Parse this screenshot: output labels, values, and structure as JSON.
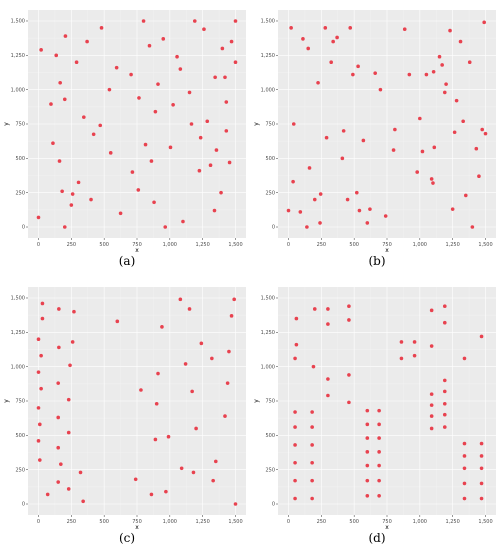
{
  "colors": {
    "point": "#e8424f",
    "panel": "#ebebeb",
    "grid": "#ffffff"
  },
  "chart_data": [
    {
      "type": "scatter",
      "caption": "(a)",
      "xlabel": "x",
      "ylabel": "y",
      "xlim": [
        -80,
        1580
      ],
      "ylim": [
        -80,
        1580
      ],
      "x_ticks": [
        0,
        250,
        500,
        750,
        1000,
        1250,
        1500
      ],
      "x_tick_labels": [
        "0",
        "250",
        "500",
        "750",
        "1,000",
        "1,250",
        "1,500"
      ],
      "y_ticks": [
        0,
        250,
        500,
        750,
        1000,
        1250,
        1500
      ],
      "y_tick_labels": [
        "0",
        "250",
        "500",
        "750",
        "1,000",
        "1,250",
        "1,500"
      ],
      "grid": true,
      "x": [
        0,
        20,
        95,
        110,
        135,
        160,
        165,
        180,
        200,
        200,
        205,
        250,
        260,
        290,
        305,
        345,
        370,
        400,
        420,
        470,
        480,
        540,
        550,
        595,
        625,
        705,
        715,
        760,
        765,
        800,
        815,
        845,
        860,
        880,
        890,
        910,
        950,
        965,
        1005,
        1025,
        1055,
        1080,
        1100,
        1150,
        1165,
        1190,
        1225,
        1235,
        1260,
        1285,
        1310,
        1340,
        1345,
        1355,
        1390,
        1400,
        1420,
        1430,
        1430,
        1455,
        1470,
        1500,
        1500
      ],
      "y": [
        70,
        1290,
        895,
        610,
        1250,
        480,
        1050,
        260,
        930,
        0,
        1390,
        160,
        240,
        1200,
        325,
        800,
        1350,
        200,
        675,
        740,
        1450,
        1000,
        540,
        1160,
        100,
        1110,
        400,
        270,
        940,
        1500,
        600,
        1320,
        480,
        180,
        840,
        1040,
        1370,
        0,
        580,
        890,
        1240,
        1150,
        40,
        980,
        750,
        1500,
        410,
        650,
        1440,
        770,
        450,
        120,
        1090,
        560,
        250,
        1300,
        1090,
        700,
        910,
        470,
        1350,
        1200,
        1500
      ]
    },
    {
      "type": "scatter",
      "caption": "(b)",
      "xlabel": "x",
      "ylabel": "y",
      "xlim": [
        -80,
        1580
      ],
      "ylim": [
        -80,
        1580
      ],
      "x_ticks": [
        0,
        250,
        500,
        750,
        1000,
        1250,
        1500
      ],
      "x_tick_labels": [
        "0",
        "250",
        "500",
        "750",
        "1,000",
        "1,250",
        "1,500"
      ],
      "y_ticks": [
        0,
        250,
        500,
        750,
        1000,
        1250,
        1500
      ],
      "y_tick_labels": [
        "0",
        "250",
        "500",
        "750",
        "1,000",
        "1,250",
        "1,500"
      ],
      "grid": true,
      "x": [
        0,
        20,
        35,
        40,
        90,
        110,
        140,
        150,
        160,
        200,
        225,
        240,
        245,
        280,
        290,
        325,
        340,
        370,
        410,
        420,
        450,
        470,
        490,
        520,
        530,
        540,
        570,
        600,
        620,
        660,
        700,
        740,
        800,
        810,
        885,
        920,
        980,
        1000,
        1020,
        1050,
        1090,
        1100,
        1105,
        1110,
        1150,
        1170,
        1190,
        1200,
        1230,
        1250,
        1265,
        1280,
        1310,
        1330,
        1350,
        1380,
        1400,
        1430,
        1450,
        1475,
        1490,
        1500
      ],
      "y": [
        120,
        1450,
        330,
        750,
        110,
        1370,
        0,
        1300,
        430,
        200,
        1050,
        30,
        240,
        1450,
        650,
        1200,
        1350,
        1380,
        500,
        700,
        200,
        1450,
        1110,
        250,
        1170,
        120,
        630,
        30,
        130,
        1120,
        1000,
        80,
        560,
        710,
        1440,
        1110,
        400,
        790,
        550,
        1110,
        350,
        320,
        1130,
        580,
        1240,
        1180,
        980,
        1040,
        1430,
        130,
        690,
        920,
        1350,
        770,
        230,
        1200,
        0,
        570,
        370,
        710,
        1490,
        680
      ]
    },
    {
      "type": "scatter",
      "caption": "(c)",
      "xlabel": "x",
      "ylabel": "y",
      "xlim": [
        -80,
        1580
      ],
      "ylim": [
        -80,
        1580
      ],
      "x_ticks": [
        0,
        250,
        500,
        750,
        1000,
        1250,
        1500
      ],
      "x_tick_labels": [
        "0",
        "250",
        "500",
        "750",
        "1,000",
        "1,250",
        "1,500"
      ],
      "y_ticks": [
        0,
        250,
        500,
        750,
        1000,
        1250,
        1500
      ],
      "y_tick_labels": [
        "0",
        "250",
        "500",
        "750",
        "1,000",
        "1,250",
        "1,500"
      ],
      "grid": true,
      "x": [
        0,
        0,
        0,
        0,
        10,
        10,
        20,
        20,
        30,
        30,
        70,
        150,
        150,
        150,
        150,
        155,
        155,
        170,
        230,
        230,
        230,
        240,
        260,
        270,
        320,
        340,
        600,
        740,
        780,
        860,
        890,
        900,
        910,
        940,
        970,
        990,
        1080,
        1090,
        1120,
        1150,
        1170,
        1180,
        1200,
        1240,
        1320,
        1330,
        1350,
        1420,
        1440,
        1450,
        1470,
        1490,
        1500
      ],
      "y": [
        460,
        700,
        960,
        1200,
        320,
        580,
        840,
        1080,
        1350,
        1460,
        70,
        160,
        410,
        630,
        880,
        1140,
        1420,
        290,
        110,
        520,
        760,
        1010,
        1180,
        1400,
        230,
        20,
        1330,
        180,
        830,
        70,
        470,
        730,
        950,
        1290,
        90,
        490,
        1490,
        260,
        1020,
        1420,
        820,
        230,
        550,
        1170,
        1060,
        170,
        310,
        640,
        880,
        1110,
        1370,
        1490,
        0
      ]
    },
    {
      "type": "scatter",
      "caption": "(d)",
      "xlabel": "x",
      "ylabel": "y",
      "xlim": [
        -80,
        1580
      ],
      "ylim": [
        -80,
        1580
      ],
      "x_ticks": [
        0,
        250,
        500,
        750,
        1000,
        1250,
        1500
      ],
      "x_tick_labels": [
        "0",
        "250",
        "500",
        "750",
        "1,000",
        "1,250",
        "1,500"
      ],
      "y_ticks": [
        0,
        250,
        500,
        750,
        1000,
        1250,
        1500
      ],
      "y_tick_labels": [
        "0",
        "250",
        "500",
        "750",
        "1,000",
        "1,250",
        "1,500"
      ],
      "grid": true,
      "x": [
        50,
        50,
        50,
        50,
        50,
        50,
        50,
        60,
        60,
        180,
        180,
        180,
        180,
        180,
        180,
        190,
        200,
        300,
        300,
        300,
        300,
        460,
        460,
        460,
        460,
        600,
        600,
        600,
        600,
        600,
        600,
        600,
        690,
        690,
        690,
        690,
        690,
        690,
        690,
        860,
        860,
        960,
        960,
        1090,
        1090,
        1090,
        1090,
        1090,
        1090,
        1190,
        1190,
        1190,
        1190,
        1190,
        1190,
        1190,
        1340,
        1340,
        1340,
        1340,
        1340,
        1340,
        1470,
        1470,
        1470,
        1470,
        1470,
        1470
      ],
      "y": [
        40,
        170,
        300,
        430,
        560,
        670,
        1060,
        1160,
        1350,
        40,
        170,
        300,
        430,
        560,
        670,
        1000,
        1420,
        790,
        910,
        1310,
        1420,
        740,
        940,
        1340,
        1440,
        60,
        170,
        280,
        380,
        480,
        580,
        680,
        60,
        170,
        280,
        380,
        480,
        580,
        680,
        1060,
        1180,
        1080,
        1180,
        550,
        640,
        720,
        800,
        1150,
        1410,
        560,
        650,
        730,
        820,
        900,
        1320,
        1440,
        40,
        150,
        260,
        350,
        440,
        1060,
        40,
        150,
        260,
        350,
        440,
        1220
      ]
    }
  ]
}
